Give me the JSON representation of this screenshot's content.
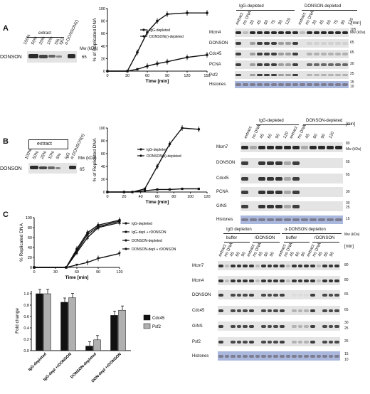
{
  "panelA": {
    "label": "A",
    "extract": {
      "header": "extract",
      "lanes": [
        "100%",
        "50%",
        "25%",
        "10%",
        "5%"
      ],
      "extra_lanes": [
        "IgG",
        "α-DONSON(r)"
      ],
      "row_label": "DONSON",
      "mw_label": "Mw (kDa)",
      "mw": "65"
    },
    "chart_data": {
      "type": "line",
      "ylabel": "% of Replicated DNA",
      "xlabel": "Time [min]",
      "xticks": [
        0,
        30,
        60,
        90,
        120,
        150
      ],
      "yticks": [
        0,
        20,
        40,
        60,
        80,
        100
      ],
      "xlim": [
        0,
        150
      ],
      "ylim": [
        0,
        100
      ],
      "series": [
        {
          "name": "IgG-depleted",
          "x": [
            0,
            30,
            45,
            60,
            75,
            90,
            120,
            150
          ],
          "y": [
            0,
            0,
            30,
            62,
            80,
            91,
            93,
            93
          ]
        },
        {
          "name": "DONSON(r)-depleted",
          "x": [
            0,
            30,
            45,
            60,
            75,
            90,
            120,
            150
          ],
          "y": [
            0,
            0,
            3,
            8,
            12,
            15,
            22,
            26
          ]
        }
      ]
    },
    "blot": {
      "groups": [
        "IgG-depleted",
        "DONSON-depleted"
      ],
      "lanes": [
        "extract",
        "no DNA",
        "30",
        "45",
        "60",
        "75",
        "90",
        "120"
      ],
      "min_label": "[min]",
      "rows": [
        "Mcm4",
        "DONSON",
        "Cdc45",
        "PCNA",
        "Psf2",
        "Histones"
      ],
      "mw_label": "Mw (kDa)",
      "mw": [
        "105",
        "65",
        "65",
        "30",
        "25",
        "15",
        "10"
      ]
    }
  },
  "panelB": {
    "label": "B",
    "extract": {
      "header": "extract",
      "lanes": [
        "100%",
        "50%",
        "25%",
        "10%",
        "5%"
      ],
      "extra_lanes": [
        "IgG",
        "α-DONSON(s)"
      ],
      "row_label": "DONSON",
      "mw_label": "Mw (kDa)",
      "mw": "65"
    },
    "chart_data": {
      "type": "line",
      "ylabel": "% of Replicated DNA",
      "xlabel": "Time [min]",
      "xticks": [
        0,
        20,
        40,
        60,
        80,
        100,
        120
      ],
      "yticks": [
        0,
        20,
        40,
        60,
        80,
        100
      ],
      "xlim": [
        0,
        120
      ],
      "ylim": [
        0,
        100
      ],
      "series": [
        {
          "name": "IgG-depleted",
          "x": [
            0,
            20,
            30,
            45,
            60,
            75,
            90,
            110
          ],
          "y": [
            0,
            0,
            0,
            5,
            40,
            75,
            100,
            98
          ]
        },
        {
          "name": "DONSON(s)-depleted",
          "x": [
            0,
            20,
            30,
            45,
            60,
            75,
            90,
            110
          ],
          "y": [
            0,
            0,
            0,
            2,
            4,
            4,
            5,
            5
          ]
        }
      ]
    },
    "blot": {
      "groups": [
        "IgG-depleted",
        "DONSON-depleted"
      ],
      "lanes": [
        "extract",
        "no DNA",
        "45",
        "60",
        "90",
        "120"
      ],
      "min_label": "[min]",
      "rows": [
        "Mcm7",
        "DONSON",
        "Cdc45",
        "PCNA",
        "GINS",
        "Histones"
      ],
      "mw_label": "Mw (kDa)",
      "mw": [
        "80",
        "65",
        "65",
        "30",
        "30",
        "25",
        "15"
      ]
    }
  },
  "panelC": {
    "label": "C",
    "chart_data": [
      {
        "type": "line",
        "ylabel": "% Replicated DNA",
        "xlabel": "Time [min]",
        "xticks": [
          0,
          30,
          60,
          90,
          120
        ],
        "yticks": [
          0,
          20,
          40,
          60,
          80,
          100
        ],
        "xlim": [
          0,
          120
        ],
        "ylim": [
          0,
          100
        ],
        "series": [
          {
            "name": "IgG-depleted",
            "x": [
              0,
              45,
              60,
              75,
              90,
              120
            ],
            "y": [
              0,
              0,
              37,
              70,
              85,
              95
            ]
          },
          {
            "name": "IgG-depl + rDONSON",
            "x": [
              0,
              45,
              60,
              75,
              90,
              120
            ],
            "y": [
              0,
              0,
              33,
              66,
              82,
              93
            ]
          },
          {
            "name": "DONSON-depleted",
            "x": [
              0,
              45,
              60,
              75,
              90,
              120
            ],
            "y": [
              0,
              0,
              30,
              60,
              80,
              90
            ]
          },
          {
            "name": "DONSON-depl + rDONSON",
            "x": [
              0,
              45,
              60,
              75,
              90,
              120
            ],
            "y": [
              0,
              0,
              5,
              10,
              18,
              28
            ]
          }
        ]
      },
      {
        "type": "bar",
        "ylabel": "Fold change",
        "categories": [
          "IgG-depleted",
          "IgG-depl +rDONSON",
          "DONSON-depleted",
          "DON-depl +rDONSON"
        ],
        "yticks": [
          "0.0",
          "0.2",
          "0.4",
          "0.6",
          "0.8",
          "1.0"
        ],
        "ylim": [
          0,
          1.05
        ],
        "series": [
          {
            "name": "Cdc45",
            "values": [
              1.0,
              0.85,
              0.08,
              0.62
            ],
            "color": "#111111"
          },
          {
            "name": "Psf2",
            "values": [
              1.0,
              0.93,
              0.19,
              0.71
            ],
            "color": "#b0b0b0"
          }
        ]
      }
    ],
    "blot": {
      "groups": [
        "IgG depletion",
        "α-DONSON depletion"
      ],
      "subgroups": [
        "buffer",
        "rDONSON",
        "buffer",
        "rDONSON"
      ],
      "lanes": [
        "extract",
        "no DNA",
        "45",
        "60",
        "90"
      ],
      "min_label": "[min]",
      "rows": [
        "Mcm7",
        "Mcm4",
        "DONSON",
        "Cdc45",
        "GINS",
        "Psf2",
        "Histones"
      ],
      "mw_label": "Mw (kDa)",
      "mw": [
        "80",
        "80",
        "65",
        "65",
        "30",
        "25",
        "25",
        "15",
        "10"
      ]
    }
  }
}
